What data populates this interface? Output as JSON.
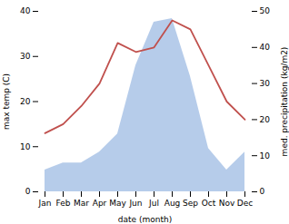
{
  "chart_data": {
    "type": "line",
    "categories": [
      "Jan",
      "Feb",
      "Mar",
      "Apr",
      "May",
      "Jun",
      "Jul",
      "Aug",
      "Sep",
      "Oct",
      "Nov",
      "Dec"
    ],
    "series": [
      {
        "type": "area",
        "axis": "y2",
        "color": "#aec6e8",
        "values": [
          6,
          8,
          8,
          11,
          16,
          35,
          47,
          48,
          32,
          12,
          6,
          11
        ]
      },
      {
        "type": "line",
        "color": "#c0504d",
        "values": [
          13,
          15,
          19,
          24,
          33,
          31,
          32,
          38,
          36,
          28,
          20,
          16
        ]
      }
    ],
    "xlabel": "date (month)",
    "ylabel": "max temp (C)",
    "y2label": "med. precipitation (kg/m2)",
    "ylim": [
      0,
      40
    ],
    "yticks": [
      0,
      10,
      20,
      30,
      40
    ],
    "y2lim": [
      0,
      50
    ],
    "y2ticks": [
      0,
      10,
      20,
      30,
      40,
      50
    ]
  }
}
